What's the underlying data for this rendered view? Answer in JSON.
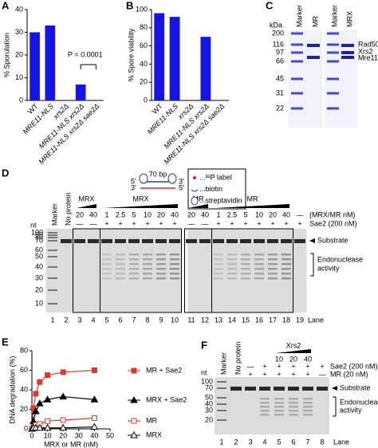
{
  "chart_data": [
    {
      "type": "bar",
      "panel_label": "A",
      "ylabel": "% Sporulation",
      "categories": [
        "WT",
        "MRE11-NLS",
        "xrs2Δ",
        "MRE11-NLS xrs2Δ",
        "MRE11-NLS xrs2Δ sae2Δ"
      ],
      "values": [
        30,
        33,
        0,
        7,
        0
      ],
      "color": "#1414e6",
      "ylim": [
        0,
        40
      ],
      "yticks": [
        0,
        10,
        20,
        30,
        40
      ],
      "annotation": "P = 0.0001"
    },
    {
      "type": "bar",
      "panel_label": "B",
      "ylabel": "% Spore viability",
      "categories": [
        "WT",
        "MRE11-NLS",
        "xrs2Δ",
        "MRE11-NLS xrs2Δ",
        "MRE11-NLS xrs2Δ sae2Δ"
      ],
      "values": [
        96,
        92,
        0,
        70,
        0
      ],
      "color": "#1414e6",
      "ylim": [
        0,
        100
      ],
      "yticks": [
        0,
        20,
        40,
        60,
        80,
        100
      ]
    },
    {
      "type": "line",
      "panel_label": "E",
      "xlabel": "MRX or MR (nM)",
      "ylabel": "DNA degradation (%)",
      "x": [
        0,
        1,
        2.5,
        5,
        10,
        20,
        40
      ],
      "xlim": [
        0,
        50
      ],
      "xticks": [
        0,
        10,
        20,
        30,
        40,
        50
      ],
      "ylim": [
        0,
        80
      ],
      "yticks": [
        0,
        20,
        40,
        60,
        80
      ],
      "legend": "right",
      "series": [
        {
          "name": "MR + Sae2",
          "color": "#d93a2b",
          "marker": "square",
          "filled": true,
          "values": [
            0,
            21,
            36,
            48,
            55,
            58,
            60
          ]
        },
        {
          "name": "MRX + Sae2",
          "color": "#000000",
          "marker": "triangle",
          "filled": true,
          "values": [
            0,
            8,
            18,
            26,
            30,
            33,
            30
          ]
        },
        {
          "name": "MR",
          "color": "#d93a2b",
          "marker": "square",
          "filled": false,
          "values": [
            0,
            2,
            4,
            5,
            8,
            9,
            11
          ]
        },
        {
          "name": "MRX",
          "color": "#000000",
          "marker": "triangle",
          "filled": false,
          "values": [
            0,
            1,
            1,
            1,
            1,
            1,
            2
          ]
        }
      ]
    }
  ],
  "gel_c": {
    "panel_label": "C",
    "unit": "kDa",
    "markers": [
      200,
      116,
      97,
      66,
      45,
      31,
      22
    ],
    "lanes": [
      "Marker",
      "MR",
      "Marker",
      "MRX"
    ],
    "bands": [
      "Rad50",
      "Xrs2",
      "Mre11"
    ]
  },
  "gel_d": {
    "panel_label": "D",
    "nt_label": "nt",
    "lane_title": "Lane",
    "lanes": [
      1,
      2,
      3,
      4,
      5,
      6,
      7,
      8,
      9,
      10,
      11,
      12,
      13,
      14,
      15,
      16,
      17,
      18,
      19
    ],
    "lane_names": [
      "Marker",
      "No protein"
    ],
    "markers": [
      100,
      90,
      80,
      70,
      60,
      50,
      40,
      30,
      20,
      10
    ],
    "groups": [
      "MRX",
      "MRX",
      "MR",
      "MR"
    ],
    "concentration_row": {
      "label": "(MRX/MR nM)",
      "entries": [
        20,
        40,
        1,
        2.5,
        5,
        10,
        20,
        40,
        20,
        40,
        1,
        2.5,
        5,
        10,
        20,
        40,
        "—"
      ]
    },
    "sae2_row": {
      "label": "Sae2 (200 nM)",
      "entries": [
        "—",
        "—",
        "+",
        "+",
        "+",
        "+",
        "+",
        "+",
        "—",
        "—",
        "+",
        "+",
        "+",
        "+",
        "+",
        "+",
        "+"
      ]
    },
    "substrate": "Substrate",
    "product": [
      "Endonuclease",
      "activity"
    ],
    "schematic": {
      "length": "70 bp",
      "ends": [
        "5'",
        "3'",
        "3'",
        "5'"
      ]
    },
    "key": [
      "...³²P label",
      "...biotin",
      "...streptavidin"
    ]
  },
  "gel_f": {
    "panel_label": "F",
    "nt_label": "nt",
    "lane_title": "Lane",
    "lanes": [
      1,
      2,
      3,
      4,
      5,
      6,
      7,
      8
    ],
    "lane_names": [
      "Marker",
      "No protein"
    ],
    "markers": [
      100,
      70,
      50,
      40,
      30,
      20
    ],
    "titration": {
      "label": "Xrs2",
      "entries": [
        10,
        20,
        40
      ]
    },
    "sae2_row": {
      "label": "Sae2 (200 nM)",
      "entries": [
        "—",
        "+",
        "+",
        "+",
        "+",
        "+"
      ]
    },
    "mr_row": {
      "label": "MR (20 nM)",
      "entries": [
        "+",
        "+",
        "+",
        "+",
        "+",
        "—"
      ]
    },
    "substrate": "Substrate",
    "product": [
      "Endonuclease",
      "activity"
    ]
  }
}
